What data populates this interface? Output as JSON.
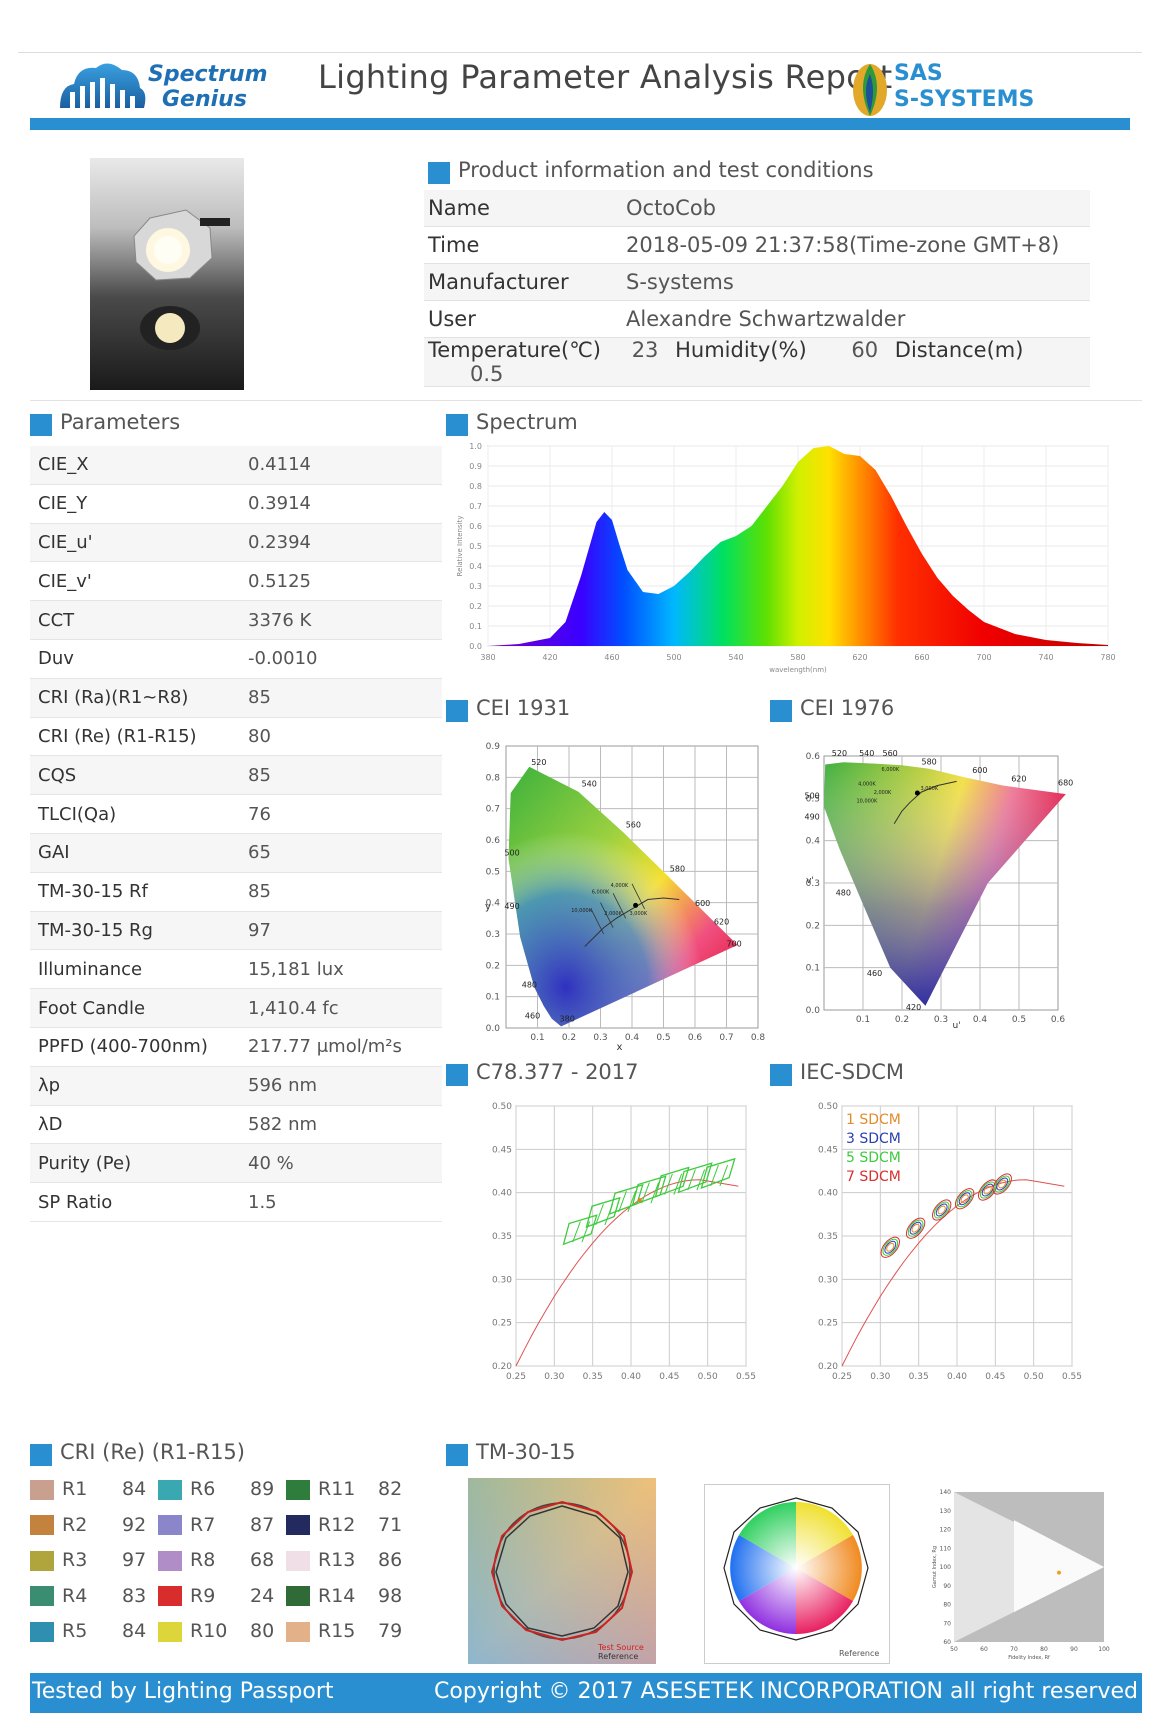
{
  "header": {
    "title": "Lighting Parameter Analysis Report",
    "logo_left_line1": "Spectrum",
    "logo_left_line2": "Genius",
    "logo_right_line1": "SAS",
    "logo_right_line2": "S-SYSTEMS"
  },
  "product": {
    "section_title": "Product information and test conditions",
    "rows": [
      {
        "label": "Name",
        "value": "OctoCob"
      },
      {
        "label": "Time",
        "value": "2018-05-09 21:37:58(Time-zone GMT+8)"
      },
      {
        "label": "Manufacturer",
        "value": "S-systems"
      },
      {
        "label": "User",
        "value": "Alexandre Schwartzwalder"
      }
    ],
    "temp_label": "Temperature(℃)",
    "temp_value": "23",
    "humidity_label": "Humidity(%)",
    "humidity_value": "60",
    "distance_label": "Distance(m)",
    "distance_value": "0.5"
  },
  "parameters": {
    "section_title": "Parameters",
    "rows": [
      {
        "label": "CIE_X",
        "value": "0.4114"
      },
      {
        "label": "CIE_Y",
        "value": "0.3914"
      },
      {
        "label": "CIE_u'",
        "value": "0.2394"
      },
      {
        "label": "CIE_v'",
        "value": "0.5125"
      },
      {
        "label": "CCT",
        "value": "3376 K"
      },
      {
        "label": "Duv",
        "value": "-0.0010"
      },
      {
        "label": "CRI (Ra)(R1~R8)",
        "value": "85"
      },
      {
        "label": "CRI (Re) (R1-R15)",
        "value": "80"
      },
      {
        "label": "CQS",
        "value": "85"
      },
      {
        "label": "TLCI(Qa)",
        "value": "76"
      },
      {
        "label": "GAI",
        "value": "65"
      },
      {
        "label": "TM-30-15 Rf",
        "value": "85"
      },
      {
        "label": "TM-30-15 Rg",
        "value": "97"
      },
      {
        "label": "Illuminance",
        "value": "15,181 lux"
      },
      {
        "label": "Foot Candle",
        "value": "1,410.4 fc"
      },
      {
        "label": "PPFD (400-700nm)",
        "value": "217.77 μmol/m²s"
      },
      {
        "label": "λp",
        "value": "596 nm"
      },
      {
        "label": "λD",
        "value": "582 nm"
      },
      {
        "label": "Purity (Pe)",
        "value": "40 %"
      },
      {
        "label": "SP Ratio",
        "value": "1.5"
      }
    ]
  },
  "sections": {
    "spectrum": "Spectrum",
    "cie1931": "CEI 1931",
    "cie1976": "CEI 1976",
    "c78": "C78.377 - 2017",
    "sdcm": "IEC-SDCM",
    "cri": "CRI (Re) (R1-R15)",
    "tm30": "TM-30-15"
  },
  "sdcm_legend": [
    {
      "label": "1 SDCM",
      "color": "#e58a2a"
    },
    {
      "label": "3 SDCM",
      "color": "#2a3fb0"
    },
    {
      "label": "5 SDCM",
      "color": "#3ecb3e"
    },
    {
      "label": "7 SDCM",
      "color": "#d83030"
    }
  ],
  "cri_values": [
    {
      "name": "R1",
      "value": "84",
      "color": "#c9a08f"
    },
    {
      "name": "R2",
      "value": "92",
      "color": "#c4823f"
    },
    {
      "name": "R3",
      "value": "97",
      "color": "#b0a53c"
    },
    {
      "name": "R4",
      "value": "83",
      "color": "#3b8d72"
    },
    {
      "name": "R5",
      "value": "84",
      "color": "#2f8fb0"
    },
    {
      "name": "R6",
      "value": "89",
      "color": "#3aa8b0"
    },
    {
      "name": "R7",
      "value": "87",
      "color": "#8b86c9"
    },
    {
      "name": "R8",
      "value": "68",
      "color": "#b08dc7"
    },
    {
      "name": "R9",
      "value": "24",
      "color": "#d92d2d"
    },
    {
      "name": "R10",
      "value": "80",
      "color": "#dcd63a"
    },
    {
      "name": "R11",
      "value": "82",
      "color": "#2f7d3c"
    },
    {
      "name": "R12",
      "value": "71",
      "color": "#232a5e"
    },
    {
      "name": "R13",
      "value": "86",
      "color": "#f0dfe6"
    },
    {
      "name": "R14",
      "value": "98",
      "color": "#2f6a37"
    },
    {
      "name": "R15",
      "value": "79",
      "color": "#e2b089"
    }
  ],
  "footer": {
    "left": "Tested by Lighting Passport",
    "right": "Copyright © 2017 ASESETEK INCORPORATION all right reserved"
  },
  "chart_data": [
    {
      "type": "area",
      "name": "spectrum",
      "xlabel": "wavelength(nm)",
      "ylabel": "Relative Intensity",
      "xlim": [
        380,
        780
      ],
      "ylim": [
        0,
        1.0
      ],
      "xticks": [
        380,
        420,
        460,
        500,
        540,
        580,
        620,
        660,
        700,
        740,
        780
      ],
      "yticks": [
        "0.0",
        "0.1",
        "0.2",
        "0.3",
        "0.4",
        "0.5",
        "0.6",
        "0.7",
        "0.8",
        "0.9",
        "1.0"
      ],
      "x": [
        380,
        400,
        420,
        430,
        440,
        450,
        455,
        460,
        465,
        470,
        480,
        490,
        500,
        510,
        520,
        530,
        540,
        550,
        560,
        570,
        580,
        590,
        600,
        610,
        620,
        630,
        640,
        650,
        660,
        670,
        680,
        690,
        700,
        720,
        740,
        760,
        780
      ],
      "y": [
        0.0,
        0.01,
        0.04,
        0.12,
        0.35,
        0.62,
        0.67,
        0.63,
        0.5,
        0.38,
        0.27,
        0.26,
        0.3,
        0.37,
        0.45,
        0.52,
        0.55,
        0.6,
        0.7,
        0.8,
        0.92,
        0.99,
        1.0,
        0.96,
        0.95,
        0.88,
        0.75,
        0.6,
        0.46,
        0.34,
        0.25,
        0.18,
        0.12,
        0.06,
        0.03,
        0.015,
        0.005
      ]
    },
    {
      "type": "scatter",
      "name": "cie1931",
      "xlabel": "x",
      "ylabel": "y",
      "xlim": [
        0,
        0.8
      ],
      "ylim": [
        0,
        0.9
      ],
      "xticks": [
        "0.1",
        "0.2",
        "0.3",
        "0.4",
        "0.5",
        "0.6",
        "0.7",
        "0.8"
      ],
      "yticks": [
        "0.0",
        "0.1",
        "0.2",
        "0.3",
        "0.4",
        "0.5",
        "0.6",
        "0.7",
        "0.8",
        "0.9"
      ],
      "wavelength_labels": [
        "520",
        "540",
        "560",
        "580",
        "600",
        "620",
        "700",
        "500",
        "490",
        "480",
        "460",
        "380"
      ],
      "cct_labels": [
        "6,000K",
        "4,000K",
        "10,000K",
        "3,000K",
        "2,000K"
      ],
      "point": {
        "x": 0.4114,
        "y": 0.3914
      }
    },
    {
      "type": "scatter",
      "name": "cie1976",
      "xlabel": "u'",
      "ylabel": "v'",
      "xlim": [
        0,
        0.6
      ],
      "ylim": [
        0,
        0.6
      ],
      "xticks": [
        "0.0",
        "0.1",
        "0.2",
        "0.3",
        "0.4",
        "0.5",
        "0.6"
      ],
      "yticks": [
        "0.0",
        "0.1",
        "0.2",
        "0.3",
        "0.4",
        "0.5",
        "0.6"
      ],
      "wavelength_labels": [
        "520",
        "540",
        "560",
        "580",
        "600",
        "620",
        "680",
        "500",
        "490",
        "480",
        "460",
        "420"
      ],
      "cct_labels": [
        "6,000K",
        "4,000K",
        "3,000K",
        "10,000K",
        "2,000K"
      ],
      "point": {
        "x": 0.2394,
        "y": 0.5125
      }
    },
    {
      "type": "line",
      "name": "c78377",
      "xlim": [
        0.25,
        0.55
      ],
      "ylim": [
        0.2,
        0.5
      ],
      "xticks": [
        "0.25",
        "0.30",
        "0.35",
        "0.40",
        "0.45",
        "0.50",
        "0.55"
      ],
      "yticks": [
        "0.20",
        "0.25",
        "0.30",
        "0.35",
        "0.40",
        "0.45",
        "0.50"
      ],
      "point": {
        "x": 0.4114,
        "y": 0.3914
      }
    },
    {
      "type": "line",
      "name": "iec_sdcm",
      "xlim": [
        0.25,
        0.55
      ],
      "ylim": [
        0.2,
        0.5
      ],
      "xticks": [
        "0.25",
        "0.30",
        "0.35",
        "0.40",
        "0.45",
        "0.50",
        "0.55"
      ],
      "yticks": [
        "0.20",
        "0.25",
        "0.30",
        "0.35",
        "0.40",
        "0.45",
        "0.50"
      ],
      "ellipse_centers": [
        [
          0.313,
          0.337
        ],
        [
          0.346,
          0.359
        ],
        [
          0.38,
          0.38
        ],
        [
          0.41,
          0.393
        ],
        [
          0.44,
          0.403
        ],
        [
          0.459,
          0.41
        ]
      ]
    },
    {
      "type": "scatter",
      "name": "tm30_fidelity_gamut",
      "xlabel": "Fidelity Index, Rf",
      "ylabel": "Gamut Index, Rg",
      "xticks": [
        "50",
        "60",
        "70",
        "80",
        "90",
        "100"
      ],
      "yticks": [
        "60",
        "70",
        "80",
        "90",
        "100",
        "110",
        "120",
        "130",
        "140"
      ],
      "point": {
        "x": 85,
        "y": 97
      },
      "vector_legend": [
        "Test Source",
        "Reference"
      ],
      "color_wheel_label": "Reference"
    }
  ]
}
